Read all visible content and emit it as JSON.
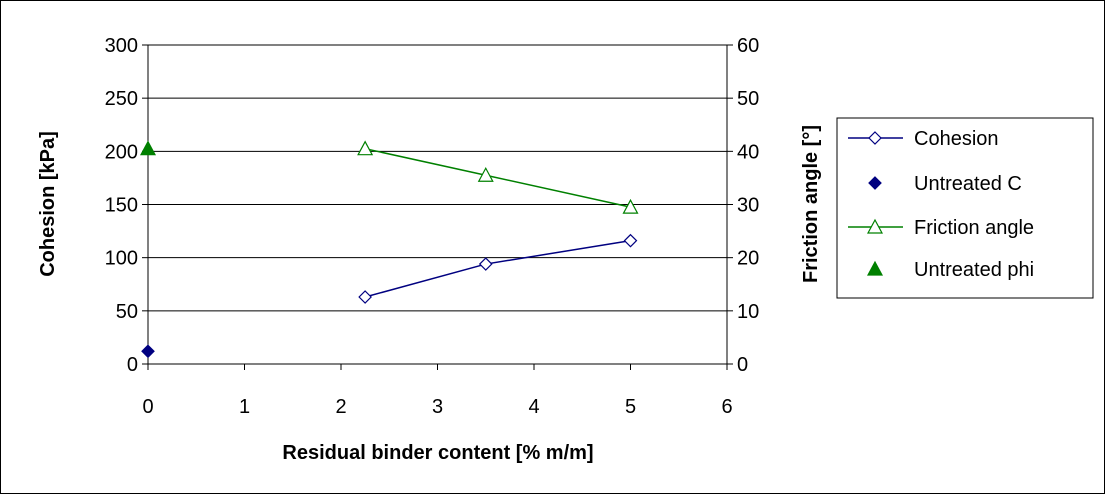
{
  "chart_data": {
    "type": "line",
    "xlabel": "Residual binder content [% m/m]",
    "ylabel": "Cohesion [kPa]",
    "y2label": "Friction angle [°]",
    "xlim": [
      0,
      6
    ],
    "ylim": [
      0,
      300
    ],
    "y2lim": [
      0,
      60
    ],
    "x_ticks": [
      "0",
      "1",
      "2",
      "3",
      "4",
      "5",
      "6"
    ],
    "y_ticks": [
      "0",
      "50",
      "100",
      "150",
      "200",
      "250",
      "300"
    ],
    "y2_ticks": [
      "0",
      "10",
      "20",
      "30",
      "40",
      "50",
      "60"
    ],
    "grid": "horizontal",
    "legend_position": "right",
    "series": [
      {
        "name": "Cohesion",
        "axis": "left",
        "marker": "diamond-open",
        "line": true,
        "color": "#000080",
        "x": [
          2.25,
          3.5,
          5.0
        ],
        "y": [
          63,
          94,
          116
        ]
      },
      {
        "name": "Untreated C",
        "axis": "left",
        "marker": "diamond-filled",
        "line": false,
        "color": "#000080",
        "x": [
          0
        ],
        "y": [
          12
        ]
      },
      {
        "name": "Friction angle",
        "axis": "right",
        "marker": "triangle-open",
        "line": true,
        "color": "#008000",
        "x": [
          2.25,
          3.5,
          5.0
        ],
        "y": [
          40.5,
          35.5,
          29.5
        ]
      },
      {
        "name": "Untreated phi",
        "axis": "right",
        "marker": "triangle-filled",
        "line": false,
        "color": "#008000",
        "x": [
          0
        ],
        "y": [
          40.5
        ]
      }
    ]
  }
}
